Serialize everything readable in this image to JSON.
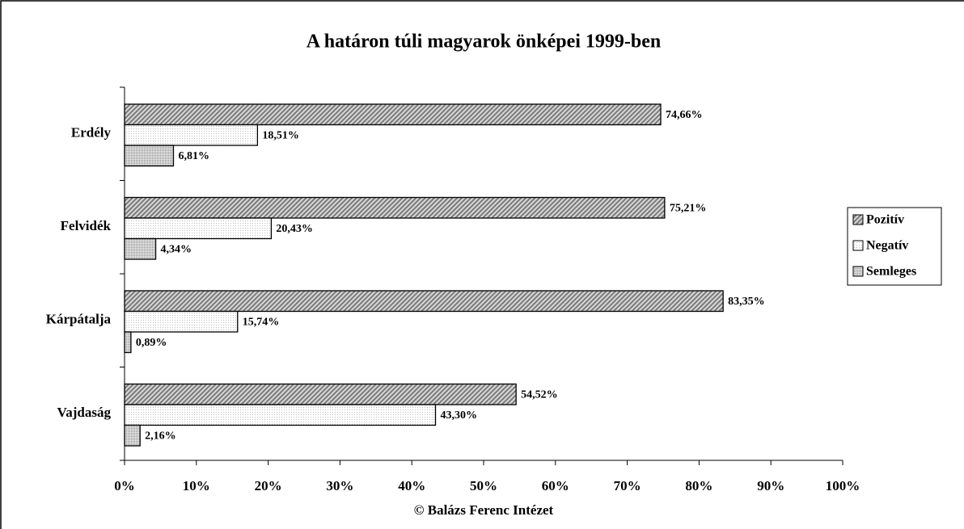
{
  "chart_data": {
    "type": "hbar",
    "title": "A határon túli magyarok önképei 1999-ben",
    "source": "© Balázs Ferenc Intézet",
    "categories": [
      "Erdély",
      "Felvidék",
      "Kárpátalja",
      "Vajdaság"
    ],
    "series": [
      {
        "name": "Pozitív",
        "color": "#9a9a9a",
        "values": [
          74.66,
          75.21,
          83.35,
          54.52
        ],
        "value_labels": [
          "74,66%",
          "75,21%",
          "83,35%",
          "54,52%"
        ]
      },
      {
        "name": "Negatív",
        "color": "#eeeeee",
        "values": [
          18.51,
          20.43,
          15.74,
          43.3
        ],
        "value_labels": [
          "18,51%",
          "20,43%",
          "15,74%",
          "43,30%"
        ]
      },
      {
        "name": "Semleges",
        "color": "#c4c4c4",
        "values": [
          6.81,
          4.34,
          0.89,
          2.16
        ],
        "value_labels": [
          "6,81%",
          "4,34%",
          "0,89%",
          "2,16%"
        ]
      }
    ],
    "xlim": [
      0,
      100
    ],
    "xticks": [
      {
        "value": 0,
        "label": "0%"
      },
      {
        "value": 10,
        "label": "10%"
      },
      {
        "value": 20,
        "label": "20%"
      },
      {
        "value": 30,
        "label": "30%"
      },
      {
        "value": 40,
        "label": "40%"
      },
      {
        "value": 50,
        "label": "50%"
      },
      {
        "value": 60,
        "label": "60%"
      },
      {
        "value": 70,
        "label": "70%"
      },
      {
        "value": 80,
        "label": "80%"
      },
      {
        "value": 90,
        "label": "90%"
      },
      {
        "value": 100,
        "label": "100%"
      }
    ],
    "legend": "right"
  }
}
